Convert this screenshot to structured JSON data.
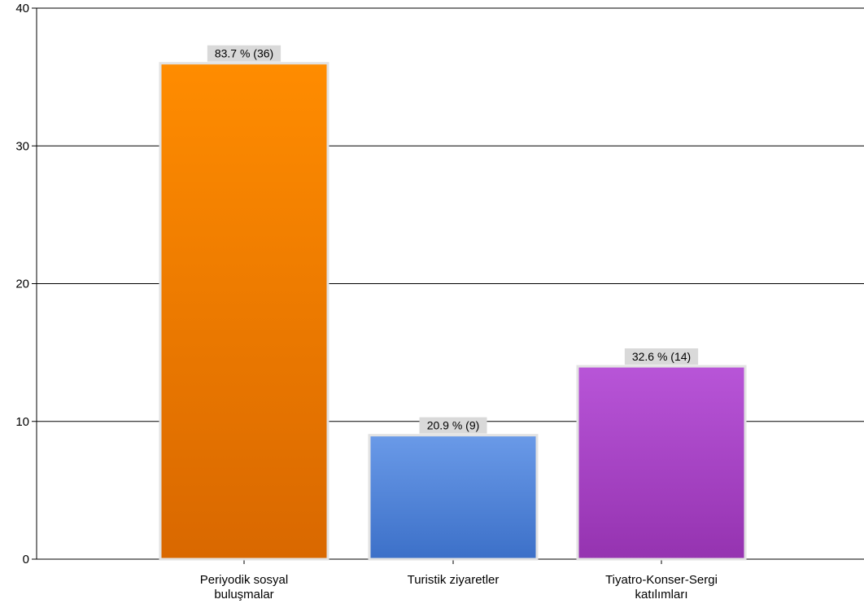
{
  "chart_data": {
    "type": "bar",
    "categories": [
      [
        "Periyodik sosyal",
        "buluşmalar"
      ],
      [
        "Turistik ziyaretler"
      ],
      [
        "Tiyatro-Konser-Sergi",
        "katılımları"
      ]
    ],
    "values": [
      36,
      9,
      14
    ],
    "data_labels": [
      "83.7 % (36)",
      "20.9 % (9)",
      "32.6 % (14)"
    ],
    "ylim": [
      0,
      40
    ],
    "yticks": [
      0,
      10,
      20,
      30,
      40
    ],
    "grid": true,
    "legend": "none",
    "title": "",
    "xlabel": "",
    "ylabel": "",
    "colors": [
      {
        "top": "#ff8c00",
        "bottom": "#d96800"
      },
      {
        "top": "#6a9ae8",
        "bottom": "#3c70c8"
      },
      {
        "top": "#b855d8",
        "bottom": "#9533b0"
      }
    ]
  }
}
